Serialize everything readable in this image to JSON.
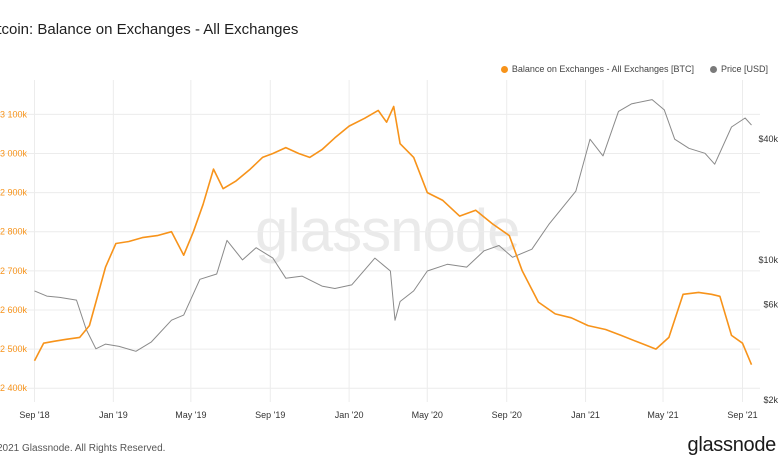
{
  "title": "itcoin: Balance on Exchanges - All Exchanges",
  "legend": [
    {
      "label": "Balance on Exchanges - All Exchanges [BTC]",
      "color": "#f7931a"
    },
    {
      "label": "Price [USD]",
      "color": "#7a7a7a"
    }
  ],
  "watermark": "glassnode",
  "footer": {
    "copyright": "2021 Glassnode. All Rights Reserved.",
    "logo": "glassnode"
  },
  "colors": {
    "balance": "#f7931a",
    "price": "#8a8a8a",
    "grid": "#ececec"
  },
  "chart_data": {
    "type": "line",
    "title": "itcoin: Balance on Exchanges - All Exchanges",
    "xlabel": "",
    "ylabel": "",
    "grid": true,
    "legend_placement": "top-right",
    "x_ticks": [
      "Sep '18",
      "Jan '19",
      "May '19",
      "Sep '19",
      "Jan '20",
      "May '20",
      "Sep '20",
      "Jan '21",
      "May '21",
      "Sep '21"
    ],
    "y_left_ticks": [
      "2 400k",
      "2 500k",
      "2 600k",
      "2 700k",
      "2 800k",
      "2 900k",
      "3 000k",
      "3 100k"
    ],
    "y_left_values": [
      2400000,
      2500000,
      2600000,
      2700000,
      2800000,
      2900000,
      3000000,
      3100000
    ],
    "y_right_ticks": [
      "$2k",
      "$6k",
      "$10k",
      "$40k"
    ],
    "y_right_values": [
      2000,
      6000,
      10000,
      40000
    ],
    "y_right_scale": "log",
    "series": [
      {
        "name": "Balance on Exchanges - All Exchanges [BTC]",
        "axis": "left",
        "x": [
          "2018-09-01",
          "2018-09-15",
          "2018-10-01",
          "2018-10-20",
          "2018-11-10",
          "2018-11-25",
          "2018-12-05",
          "2018-12-20",
          "2019-01-05",
          "2019-01-25",
          "2019-02-15",
          "2019-03-10",
          "2019-04-01",
          "2019-04-20",
          "2019-05-05",
          "2019-05-20",
          "2019-06-05",
          "2019-06-20",
          "2019-07-10",
          "2019-08-01",
          "2019-08-20",
          "2019-09-05",
          "2019-09-25",
          "2019-10-15",
          "2019-11-01",
          "2019-11-20",
          "2019-12-10",
          "2020-01-01",
          "2020-01-25",
          "2020-02-15",
          "2020-02-28",
          "2020-03-10",
          "2020-03-20",
          "2020-04-10",
          "2020-05-01",
          "2020-05-25",
          "2020-06-20",
          "2020-07-15",
          "2020-08-10",
          "2020-09-05",
          "2020-09-25",
          "2020-10-20",
          "2020-11-15",
          "2020-12-10",
          "2021-01-05",
          "2021-02-01",
          "2021-02-25",
          "2021-03-20",
          "2021-04-05",
          "2021-04-20",
          "2021-05-10",
          "2021-06-01",
          "2021-06-25",
          "2021-07-15",
          "2021-07-28",
          "2021-08-15",
          "2021-09-01",
          "2021-09-15"
        ],
        "values": [
          2470000,
          2515000,
          2520000,
          2525000,
          2530000,
          2560000,
          2620000,
          2710000,
          2770000,
          2775000,
          2785000,
          2790000,
          2800000,
          2740000,
          2800000,
          2870000,
          2960000,
          2910000,
          2930000,
          2960000,
          2990000,
          3000000,
          3015000,
          3000000,
          2990000,
          3010000,
          3040000,
          3070000,
          3090000,
          3110000,
          3080000,
          3120000,
          3025000,
          2990000,
          2900000,
          2880000,
          2840000,
          2855000,
          2820000,
          2790000,
          2700000,
          2620000,
          2590000,
          2580000,
          2560000,
          2550000,
          2535000,
          2520000,
          2510000,
          2500000,
          2530000,
          2640000,
          2645000,
          2640000,
          2635000,
          2535000,
          2515000,
          2460000
        ]
      },
      {
        "name": "Price [USD]",
        "axis": "right",
        "x": [
          "2018-09-01",
          "2018-09-20",
          "2018-10-10",
          "2018-11-05",
          "2018-11-20",
          "2018-12-05",
          "2018-12-20",
          "2019-01-10",
          "2019-02-05",
          "2019-03-01",
          "2019-04-01",
          "2019-04-20",
          "2019-05-15",
          "2019-06-10",
          "2019-06-26",
          "2019-07-20",
          "2019-08-10",
          "2019-09-05",
          "2019-09-25",
          "2019-10-20",
          "2019-11-20",
          "2019-12-10",
          "2020-01-05",
          "2020-02-10",
          "2020-03-05",
          "2020-03-12",
          "2020-03-20",
          "2020-04-10",
          "2020-05-01",
          "2020-06-01",
          "2020-07-01",
          "2020-07-28",
          "2020-08-20",
          "2020-09-10",
          "2020-10-10",
          "2020-11-05",
          "2020-11-25",
          "2020-12-17",
          "2021-01-08",
          "2021-01-28",
          "2021-02-21",
          "2021-03-13",
          "2021-04-14",
          "2021-05-03",
          "2021-05-19",
          "2021-06-10",
          "2021-07-05",
          "2021-07-20",
          "2021-08-15",
          "2021-09-05",
          "2021-09-15"
        ],
        "values": [
          7000,
          6600,
          6500,
          6300,
          4500,
          3600,
          3800,
          3700,
          3500,
          3900,
          5000,
          5300,
          8000,
          8500,
          12500,
          10000,
          11500,
          10200,
          8100,
          8300,
          7400,
          7200,
          7500,
          10200,
          8800,
          5000,
          6200,
          7000,
          8800,
          9500,
          9200,
          11100,
          11800,
          10300,
          11300,
          15000,
          18000,
          22000,
          40000,
          33000,
          55000,
          60000,
          63000,
          56000,
          40000,
          36000,
          34000,
          30000,
          46000,
          51000,
          47000
        ]
      }
    ]
  }
}
